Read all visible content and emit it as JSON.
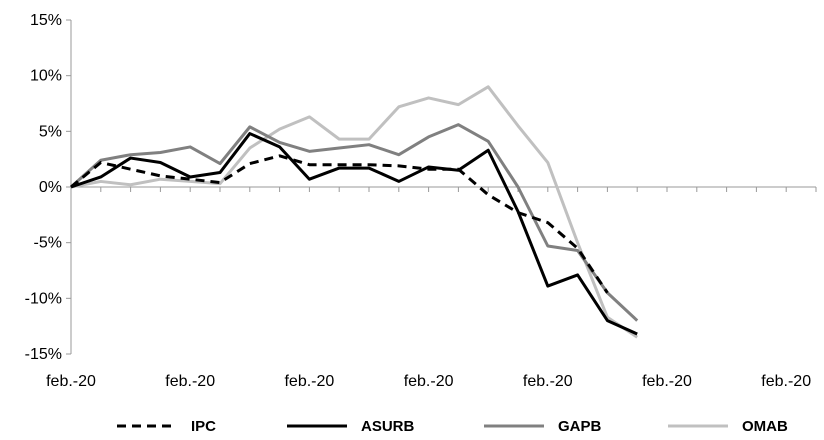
{
  "chart_data": {
    "type": "line",
    "title": "",
    "xlabel": "",
    "ylabel": "",
    "ylim": [
      -15,
      15
    ],
    "y_ticks": [
      15,
      10,
      5,
      0,
      -5,
      -10,
      -15
    ],
    "y_tick_labels": [
      "15%",
      "10%",
      "5%",
      "0%",
      "-5%",
      "-10%",
      "-15%"
    ],
    "x_tick_labels": [
      "feb.-20",
      "feb.-20",
      "feb.-20",
      "feb.-20",
      "feb.-20",
      "feb.-20",
      "feb.-20"
    ],
    "x_tick_indices": [
      0,
      4,
      8,
      12,
      16,
      20,
      24
    ],
    "x_count": 26,
    "grid": false,
    "legend_position": "bottom",
    "series": [
      {
        "name": "IPC",
        "color": "#000000",
        "dash": "dashed",
        "values": [
          0.0,
          2.2,
          1.6,
          1.0,
          0.7,
          0.4,
          2.1,
          2.8,
          2.0,
          2.0,
          2.0,
          1.9,
          1.6,
          1.6,
          -0.7,
          -2.3,
          -3.2,
          -5.5,
          -9.5
        ]
      },
      {
        "name": "ASURB",
        "color": "#000000",
        "dash": "solid",
        "values": [
          0.0,
          0.9,
          2.6,
          2.2,
          0.9,
          1.3,
          4.8,
          3.6,
          0.7,
          1.7,
          1.7,
          0.5,
          1.8,
          1.5,
          3.3,
          -2.2,
          -8.9,
          -7.9,
          -12.0,
          -13.2
        ]
      },
      {
        "name": "GAPB",
        "color": "#808080",
        "dash": "solid",
        "values": [
          0.0,
          2.4,
          2.9,
          3.1,
          3.6,
          2.1,
          5.4,
          4.0,
          3.2,
          3.5,
          3.8,
          2.9,
          4.5,
          5.6,
          4.1,
          0.0,
          -5.3,
          -5.7,
          -9.5,
          -12.0
        ]
      },
      {
        "name": "OMAB",
        "color": "#c0c0c0",
        "dash": "solid",
        "values": [
          0.0,
          0.5,
          0.2,
          0.7,
          0.5,
          0.3,
          3.5,
          5.2,
          6.3,
          4.3,
          4.3,
          7.2,
          8.0,
          7.4,
          9.0,
          5.5,
          2.2,
          -5.0,
          -11.7,
          -13.5
        ]
      }
    ]
  }
}
